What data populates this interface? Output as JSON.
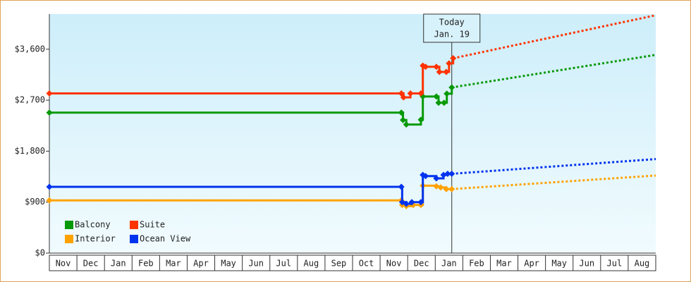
{
  "chart_data": {
    "type": "step-line",
    "categories": [
      "Nov",
      "Dec",
      "Jan",
      "Feb",
      "Mar",
      "Apr",
      "May",
      "Jun",
      "Jul",
      "Aug",
      "Sep",
      "Oct",
      "Nov",
      "Dec",
      "Jan",
      "Feb",
      "Mar",
      "Apr",
      "May",
      "Jun",
      "Jul",
      "Aug"
    ],
    "xlim": [
      0,
      22
    ],
    "ylim": [
      0,
      4220
    ],
    "yticks": [
      {
        "value": 0,
        "label": "$0"
      },
      {
        "value": 900,
        "label": "$900"
      },
      {
        "value": 1800,
        "label": "$1,800"
      },
      {
        "value": 2700,
        "label": "$2,700"
      },
      {
        "value": 3600,
        "label": "$3,600"
      }
    ],
    "today": {
      "x": 14.6,
      "label": "Today",
      "date": "Jan. 19"
    },
    "legend": "lower left",
    "series": [
      {
        "name": "Balcony",
        "color": "#079907",
        "x": [
          0,
          12.77,
          12.83,
          12.95,
          13.48,
          13.55,
          14.04,
          14.12,
          14.32,
          14.42,
          14.6
        ],
        "values": [
          2480,
          2480,
          2350,
          2270,
          2355,
          2765,
          2765,
          2655,
          2655,
          2815,
          2925
        ],
        "forecast": 3500
      },
      {
        "name": "Suite",
        "color": "#ff3300",
        "x": [
          0,
          12.77,
          12.85,
          13.1,
          13.48,
          13.55,
          13.65,
          14.04,
          14.15,
          14.4,
          14.5,
          14.65
        ],
        "values": [
          2820,
          2820,
          2750,
          2820,
          2820,
          3310,
          3290,
          3290,
          3200,
          3200,
          3350,
          3440
        ],
        "forecast": 4200
      },
      {
        "name": "Interior",
        "color": "#ffa200",
        "x": [
          0,
          12.77,
          12.8,
          12.95,
          13.2,
          13.48,
          13.55,
          14.04,
          14.2,
          14.4,
          14.6
        ],
        "values": [
          930,
          930,
          850,
          830,
          850,
          850,
          1190,
          1180,
          1160,
          1130,
          1130
        ],
        "forecast": 1370
      },
      {
        "name": "Ocean View",
        "color": "#0033ee",
        "x": [
          0,
          12.77,
          12.8,
          12.95,
          13.15,
          13.48,
          13.55,
          13.65,
          14.04,
          14.3,
          14.45,
          14.6
        ],
        "values": [
          1170,
          1170,
          900,
          870,
          900,
          900,
          1380,
          1360,
          1320,
          1380,
          1400,
          1400
        ],
        "forecast": 1660
      }
    ]
  }
}
